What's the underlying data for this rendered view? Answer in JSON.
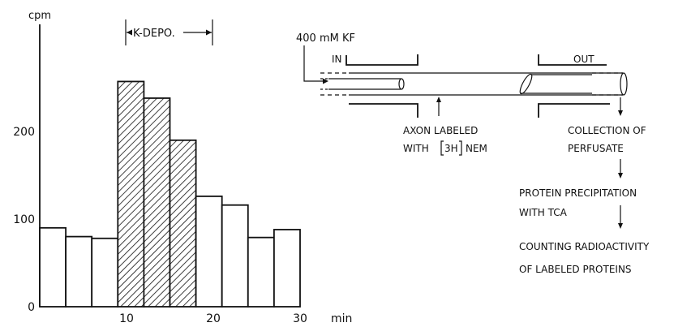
{
  "chart_data": {
    "type": "bar",
    "ylabel": "cpm",
    "xlabel": "min",
    "x_ticks": [
      10,
      20,
      30
    ],
    "y_ticks": [
      0,
      100,
      200
    ],
    "xlim": [
      0,
      33
    ],
    "ylim": [
      0,
      275
    ],
    "bars": [
      {
        "x0": 0,
        "x1": 3,
        "value": 90,
        "depolarized": false
      },
      {
        "x0": 3,
        "x1": 6,
        "value": 80,
        "depolarized": false
      },
      {
        "x0": 6,
        "x1": 9,
        "value": 78,
        "depolarized": false
      },
      {
        "x0": 9,
        "x1": 12,
        "value": 257,
        "depolarized": true
      },
      {
        "x0": 12,
        "x1": 15,
        "value": 238,
        "depolarized": true
      },
      {
        "x0": 15,
        "x1": 18,
        "value": 190,
        "depolarized": true
      },
      {
        "x0": 18,
        "x1": 21,
        "value": 126,
        "depolarized": false
      },
      {
        "x0": 21,
        "x1": 24,
        "value": 116,
        "depolarized": false
      },
      {
        "x0": 24,
        "x1": 27,
        "value": 79,
        "depolarized": false
      },
      {
        "x0": 27,
        "x1": 30,
        "value": 88,
        "depolarized": false
      }
    ],
    "annotation": {
      "label": "K-DEPO.",
      "x_start": 9,
      "x_end": 18
    },
    "hatch_color": "#111111",
    "grid": false
  },
  "diagram": {
    "kf_label": "400 mM KF",
    "in_label": "IN",
    "out_label": "OUT",
    "axon_label_line1": "AXON LABELED",
    "axon_label_line2_prefix": "WITH ",
    "axon_label_isotope": "3H",
    "axon_label_line2_suffix": "NEM",
    "steps": [
      {
        "line1": "COLLECTION OF",
        "line2": "PERFUSATE"
      },
      {
        "line1": "PROTEIN PRECIPITATION",
        "line2": "WITH   TCA"
      },
      {
        "line1": "COUNTING RADIOACTIVITY",
        "line2": "OF LABELED PROTEINS"
      }
    ]
  }
}
